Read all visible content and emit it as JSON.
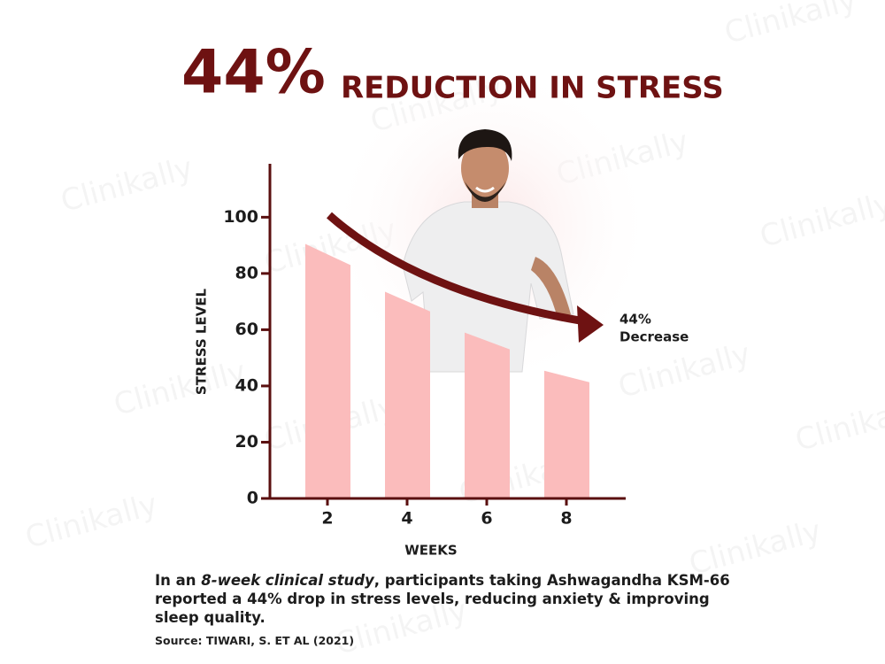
{
  "chart_data": {
    "type": "bar",
    "title_number": "44%",
    "title": "REDUCTION IN STRESS",
    "y_label": "STRESS LEVEL",
    "x_label": "WEEKS",
    "categories": [
      "2",
      "4",
      "6",
      "8"
    ],
    "values": [
      90.5,
      73.5,
      59,
      45.4
    ],
    "end_values": [
      83,
      66.5,
      53,
      41.3
    ],
    "color": "#fbbcbc",
    "ylim": [
      0,
      119
    ],
    "yticks": [
      0,
      20,
      40,
      60,
      80,
      100
    ],
    "annotation": [
      "44%",
      "Decrease"
    ],
    "watermark": "Clinikally"
  },
  "body": {
    "line1_a": "In an ",
    "line1_italic": "8-week clinical study",
    "line1_b": ", participants taking Ashwagandha KSM-66",
    "line2": "reported a 44% drop in stress levels, reducing anxiety & improving",
    "line3": "sleep quality.",
    "source": "Source: TIWARI, S. ET AL (2021)"
  }
}
